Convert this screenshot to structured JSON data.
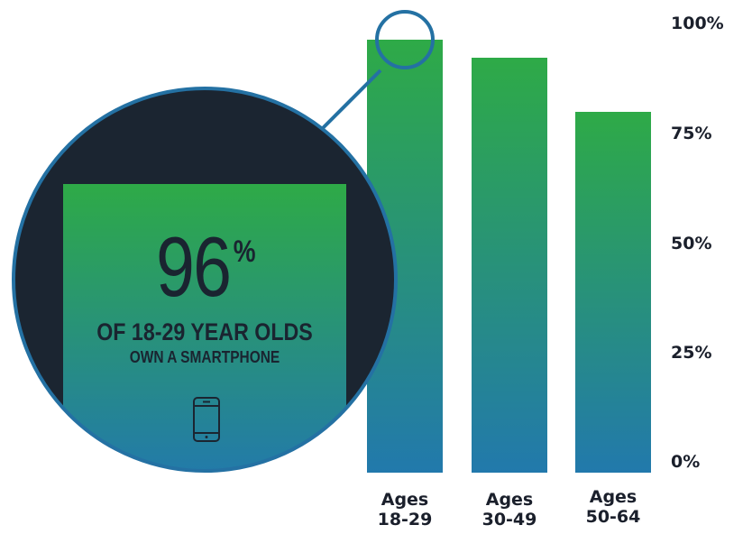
{
  "colors": {
    "bar_top": "#2eaa47",
    "bar_bottom": "#2279ac",
    "callout_bg": "#1b2531",
    "callout_ring": "#2471a3",
    "text": "#1a1f2b"
  },
  "chart_data": {
    "type": "bar",
    "categories": [
      "Ages 18-29",
      "Ages 30-49",
      "Ages 50-64"
    ],
    "values": [
      96,
      92,
      80
    ],
    "ylim": [
      0,
      100
    ],
    "y_ticks": [
      "100%",
      "75%",
      "50%",
      "25%",
      "0%"
    ],
    "y_tick_values": [
      100,
      75,
      50,
      25,
      0
    ],
    "y_axis_side": "right",
    "grid": false,
    "category_lines": [
      [
        "Ages",
        "18-29"
      ],
      [
        "Ages",
        "30-49"
      ],
      [
        "Ages",
        "50-64"
      ]
    ]
  },
  "callout": {
    "value": "96",
    "unit": "%",
    "line1": "OF 18-29 YEAR OLDS",
    "line2": "OWN A SMARTPHONE",
    "icon": "smartphone-icon"
  }
}
